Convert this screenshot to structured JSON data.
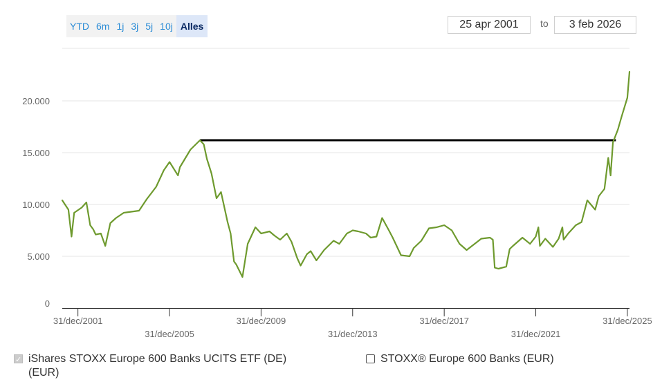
{
  "range_buttons": {
    "ytd": "YTD",
    "m6": "6m",
    "y1": "1j",
    "y3": "3j",
    "y5": "5j",
    "y10": "10j",
    "all": "Alles"
  },
  "date_range": {
    "from": "25 apr 2001",
    "to_label": "to",
    "to": "3 feb 2026"
  },
  "legend": {
    "series1": "iShares STOXX Europe 600 Banks UCITS ETF (DE)",
    "series1_line2": "(EUR)",
    "series2": "STOXX® Europe 600 Banks (EUR)"
  },
  "colors": {
    "series": "#6e9a2e",
    "reference_line": "#000000",
    "grid": "#e6e6e6",
    "axis_text": "#666666"
  },
  "chart_data": {
    "type": "line",
    "title": "",
    "xlabel": "",
    "ylabel": "",
    "ylim": [
      0,
      23000
    ],
    "y_ticks": [
      0,
      5000,
      10000,
      15000,
      20000
    ],
    "y_tick_labels": [
      "0",
      "5.000",
      "10.000",
      "15.000",
      "20.000"
    ],
    "x_ticks": [
      "2001-12-31",
      "2005-12-31",
      "2009-12-31",
      "2013-12-31",
      "2017-12-31",
      "2021-12-31",
      "2025-12-31"
    ],
    "x_tick_labels": [
      "31/dec/2001",
      "31/dec/2005",
      "31/dec/2009",
      "31/dec/2013",
      "31/dec/2017",
      "31/dec/2021",
      "31/dec/2025"
    ],
    "x_range": [
      "2001-04-25",
      "2026-02-03"
    ],
    "grid": true,
    "reference_line": {
      "value": 16200,
      "from": "2007-05-01",
      "to": "2025-07-01"
    },
    "series": [
      {
        "name": "iShares STOXX Europe 600 Banks UCITS ETF (DE)",
        "x": [
          "2001-04-25",
          "2001-08-01",
          "2001-09-20",
          "2001-11-01",
          "2002-03-01",
          "2002-05-15",
          "2002-07-15",
          "2002-09-01",
          "2002-10-10",
          "2003-01-01",
          "2003-03-12",
          "2003-06-01",
          "2003-09-01",
          "2004-01-01",
          "2004-05-01",
          "2004-09-01",
          "2005-01-01",
          "2005-06-01",
          "2005-10-01",
          "2006-01-01",
          "2006-05-15",
          "2006-06-15",
          "2006-12-01",
          "2007-05-01",
          "2007-07-01",
          "2007-08-20",
          "2007-11-01",
          "2008-01-20",
          "2008-04-01",
          "2008-07-15",
          "2008-09-01",
          "2008-10-25",
          "2008-12-01",
          "2009-03-09",
          "2009-06-01",
          "2009-10-01",
          "2010-01-01",
          "2010-05-15",
          "2010-08-01",
          "2010-11-01",
          "2011-02-15",
          "2011-05-01",
          "2011-08-01",
          "2011-09-23",
          "2012-01-01",
          "2012-03-01",
          "2012-06-01",
          "2012-10-01",
          "2013-03-01",
          "2013-06-01",
          "2013-10-01",
          "2014-01-01",
          "2014-04-01",
          "2014-08-01",
          "2014-10-15",
          "2015-01-15",
          "2015-04-15",
          "2015-08-01",
          "2015-10-01",
          "2016-02-11",
          "2016-06-27",
          "2016-09-01",
          "2016-12-31",
          "2017-05-01",
          "2017-09-01",
          "2017-12-31",
          "2018-05-01",
          "2018-09-01",
          "2018-12-24",
          "2019-08-15",
          "2019-12-31",
          "2020-02-15",
          "2020-03-16",
          "2020-05-15",
          "2020-09-15",
          "2020-11-09",
          "2020-12-31",
          "2021-06-01",
          "2021-10-01",
          "2021-12-31",
          "2022-02-10",
          "2022-03-07",
          "2022-06-01",
          "2022-09-30",
          "2022-12-31",
          "2023-03-01",
          "2023-03-20",
          "2023-06-01",
          "2023-10-01",
          "2023-12-31",
          "2024-04-01",
          "2024-08-05",
          "2024-10-01",
          "2024-12-31",
          "2025-03-01",
          "2025-04-08",
          "2025-05-15",
          "2025-08-01",
          "2025-10-01",
          "2025-12-31",
          "2026-02-03"
        ],
        "values": [
          10400,
          9500,
          6900,
          9200,
          9700,
          10200,
          8000,
          7600,
          7100,
          7200,
          6000,
          8200,
          8700,
          9200,
          9300,
          9400,
          10500,
          11700,
          13300,
          14100,
          12800,
          13600,
          15300,
          16200,
          15800,
          14400,
          13000,
          10600,
          11200,
          8300,
          7200,
          4500,
          4200,
          3000,
          6200,
          7800,
          7200,
          7400,
          7000,
          6600,
          7200,
          6400,
          4800,
          4100,
          5200,
          5500,
          4600,
          5600,
          6500,
          6200,
          7200,
          7500,
          7400,
          7200,
          6800,
          6900,
          8700,
          7500,
          6800,
          5100,
          5000,
          5800,
          6500,
          7700,
          7800,
          8000,
          7500,
          6200,
          5600,
          6700,
          6800,
          6600,
          3900,
          3800,
          4000,
          5700,
          6000,
          6800,
          6200,
          6900,
          7800,
          6000,
          6700,
          5900,
          6700,
          7800,
          6600,
          7200,
          8000,
          8300,
          10400,
          9500,
          10800,
          11500,
          14500,
          12800,
          16000,
          17200,
          18500,
          20300,
          22800
        ]
      }
    ]
  }
}
